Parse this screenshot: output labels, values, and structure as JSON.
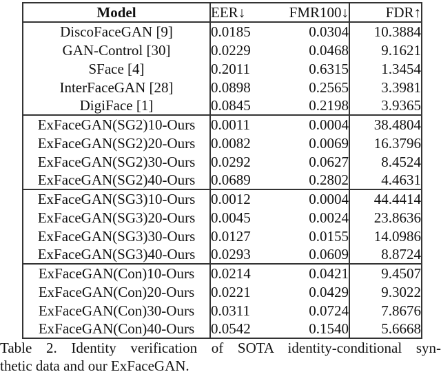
{
  "table": {
    "columns": {
      "model": "Model",
      "eer": "EER↓",
      "fmr100": "FMR100↓",
      "fdr": "FDR↑"
    },
    "groups": [
      {
        "rows": [
          {
            "model": "DiscoFaceGAN [9]",
            "eer": "0.0185",
            "fmr100": "0.0304",
            "fdr": "10.3884"
          },
          {
            "model": "GAN-Control [30]",
            "eer": "0.0229",
            "fmr100": "0.0468",
            "fdr": "9.1621"
          },
          {
            "model": "SFace [4]",
            "eer": "0.2011",
            "fmr100": "0.6315",
            "fdr": "1.3454"
          },
          {
            "model": "InterFaceGAN [28]",
            "eer": "0.0898",
            "fmr100": "0.2565",
            "fdr": "3.3981"
          },
          {
            "model": "DigiFace [1]",
            "eer": "0.0845",
            "fmr100": "0.2198",
            "fdr": "3.9365"
          }
        ]
      },
      {
        "rows": [
          {
            "model": "ExFaceGAN(SG2)10-Ours",
            "eer": "0.0011",
            "fmr100": "0.0004",
            "fdr": "38.4804"
          },
          {
            "model": "ExFaceGAN(SG2)20-Ours",
            "eer": "0.0082",
            "fmr100": "0.0069",
            "fdr": "16.3796"
          },
          {
            "model": "ExFaceGAN(SG2)30-Ours",
            "eer": "0.0292",
            "fmr100": "0.0627",
            "fdr": "8.4524"
          },
          {
            "model": "ExFaceGAN(SG2)40-Ours",
            "eer": "0.0689",
            "fmr100": "0.2802",
            "fdr": "4.4631"
          }
        ]
      },
      {
        "rows": [
          {
            "model": "ExFaceGAN(SG3)10-Ours",
            "eer": "0.0012",
            "fmr100": "0.0004",
            "fdr": "44.4414"
          },
          {
            "model": "ExFaceGAN(SG3)20-Ours",
            "eer": "0.0045",
            "fmr100": "0.0024",
            "fdr": "23.8636"
          },
          {
            "model": "ExFaceGAN(SG3)30-Ours",
            "eer": "0.0127",
            "fmr100": "0.0155",
            "fdr": "14.0986"
          },
          {
            "model": "ExFaceGAN(SG3)40-Ours",
            "eer": "0.0293",
            "fmr100": "0.0609",
            "fdr": "8.8724"
          }
        ]
      },
      {
        "rows": [
          {
            "model": "ExFaceGAN(Con)10-Ours",
            "eer": "0.0214",
            "fmr100": "0.0421",
            "fdr": "9.4507"
          },
          {
            "model": "ExFaceGAN(Con)20-Ours",
            "eer": "0.0221",
            "fmr100": "0.0429",
            "fdr": "9.3022"
          },
          {
            "model": "ExFaceGAN(Con)30-Ours",
            "eer": "0.0311",
            "fmr100": "0.0724",
            "fdr": "7.8676"
          },
          {
            "model": "ExFaceGAN(Con)40-Ours",
            "eer": "0.0542",
            "fmr100": "0.1540",
            "fdr": "5.6668"
          }
        ]
      }
    ]
  },
  "caption": {
    "line1": "Table 2. Identity verification of SOTA identity-conditional syn-",
    "line2": "thetic data and our ExFaceGAN."
  },
  "colors": {
    "text": "#121212",
    "border": "#333333",
    "background": "#ffffff"
  }
}
